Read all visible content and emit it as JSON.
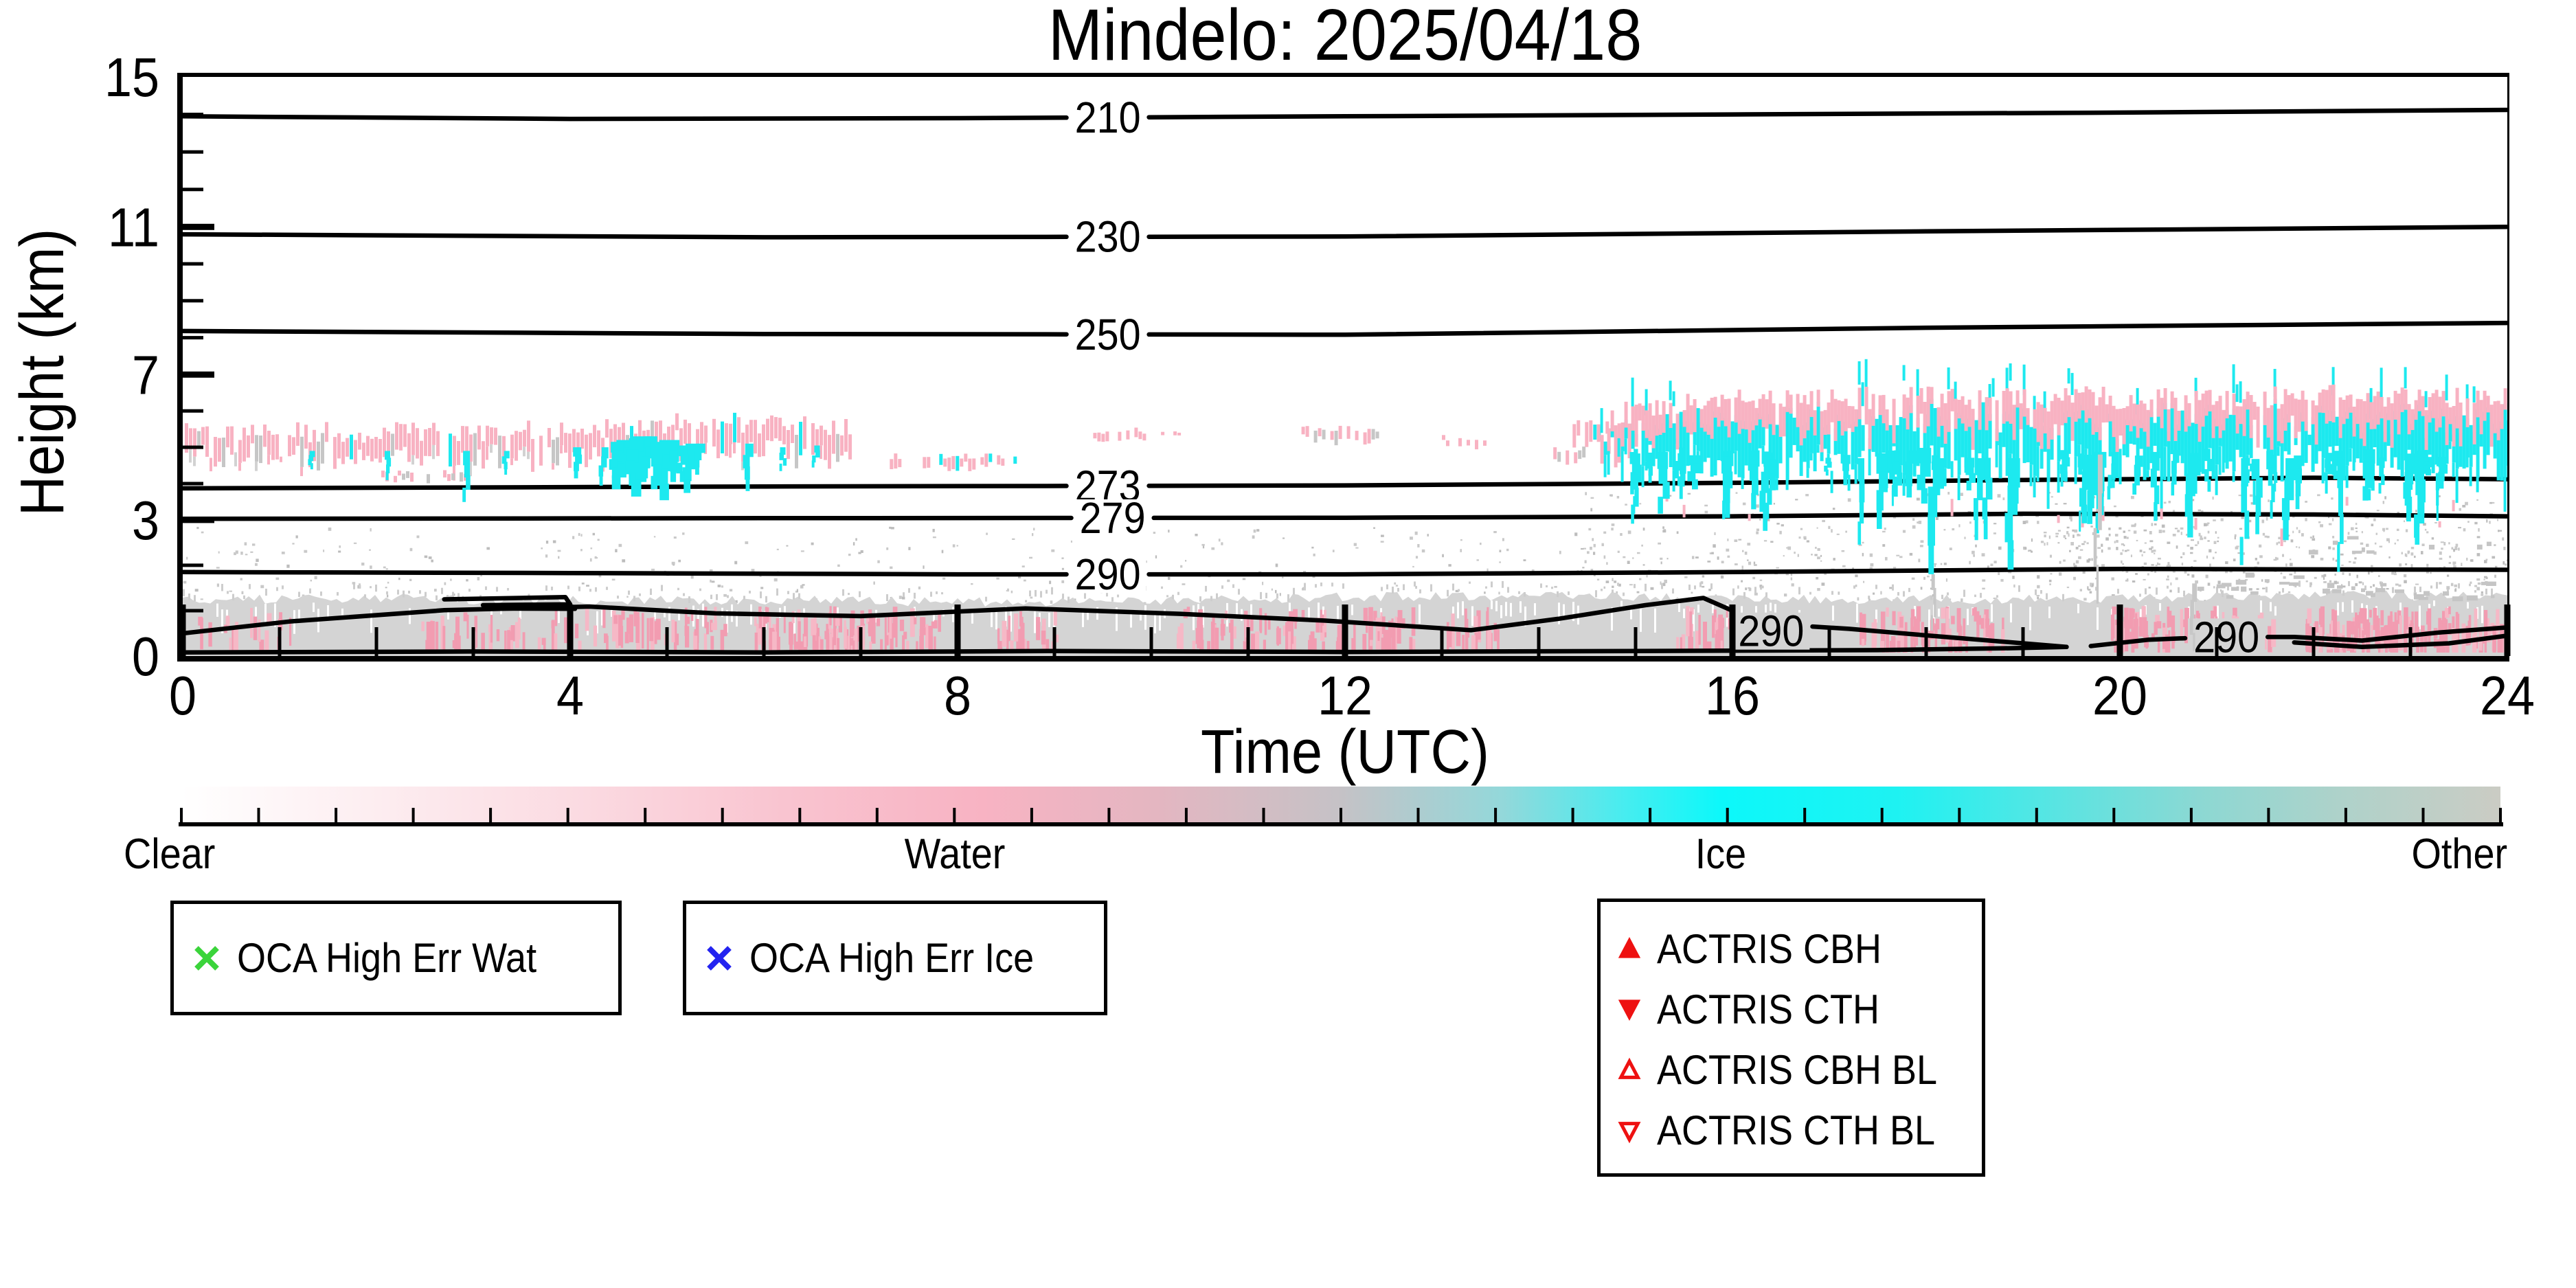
{
  "title": "Mindelo: 2025/04/18",
  "axes": {
    "ylabel": "Height (km)",
    "xlabel": "Time (UTC)"
  },
  "colorbar": {
    "labels": [
      {
        "text": "Clear"
      },
      {
        "text": "Water"
      },
      {
        "text": "Ice"
      },
      {
        "text": "Other"
      }
    ],
    "tick_count": 31,
    "stops": [
      [
        0.0,
        "#ffffff"
      ],
      [
        0.08,
        "#fdeef1"
      ],
      [
        0.17,
        "#fbdbe2"
      ],
      [
        0.26,
        "#f9c4d0"
      ],
      [
        0.345,
        "#f8b3c3"
      ],
      [
        0.42,
        "#e4b6c1"
      ],
      [
        0.5,
        "#c5c2c6"
      ],
      [
        0.57,
        "#93d8da"
      ],
      [
        0.62,
        "#4aecef"
      ],
      [
        0.664,
        "#0cf8fa"
      ],
      [
        0.74,
        "#1ef2f2"
      ],
      [
        0.8,
        "#52e6e4"
      ],
      [
        0.87,
        "#8cd8d3"
      ],
      [
        0.93,
        "#aed2ca"
      ],
      [
        1.0,
        "#cbccc4"
      ]
    ]
  },
  "legends": {
    "oca_wat": {
      "label": "OCA High Err Wat",
      "marker": "x",
      "color": "#3bd43b"
    },
    "oca_ice": {
      "label": "OCA High Err Ice",
      "marker": "x",
      "color": "#2323f0"
    },
    "actris": {
      "marker_color": "#ee1111",
      "items": [
        {
          "label": "ACTRIS CBH",
          "marker": "triangle-up-filled"
        },
        {
          "label": "ACTRIS CTH",
          "marker": "triangle-down-filled"
        },
        {
          "label": "ACTRIS CBH BL",
          "marker": "triangle-up-open"
        },
        {
          "label": "ACTRIS CTH BL",
          "marker": "triangle-down-open"
        }
      ]
    }
  },
  "chart_data": {
    "type": "heatmap",
    "title": "Mindelo: 2025/04/18",
    "xlabel": "Time (UTC)",
    "ylabel": "Height (km)",
    "x_range": [
      0,
      24
    ],
    "x_major_ticks": [
      0,
      4,
      8,
      12,
      16,
      20,
      24
    ],
    "x_minor_step": 1,
    "y_range": [
      0,
      15
    ],
    "y_major_ticks": [
      0,
      3,
      7,
      11,
      15
    ],
    "y_minor_step": 1,
    "height_scale_anchors": [
      [
        0,
        0.0
      ],
      [
        3,
        0.235
      ],
      [
        7,
        0.486
      ],
      [
        11,
        0.741
      ],
      [
        15,
        1.0
      ]
    ],
    "category_colors": {
      "clear": "#ffffff",
      "water": "#f8b2c2",
      "ice": "#1de9ef",
      "other_gray": "#d4d4d4",
      "water_bl_streak": "#f29cb1",
      "drizzle_gray": "#c9c9c9"
    },
    "temperature_contours": [
      {
        "level": 210,
        "pts": [
          [
            0,
            13.95
          ],
          [
            4,
            13.88
          ],
          [
            8,
            13.9
          ],
          [
            12,
            13.95
          ],
          [
            16,
            14.0
          ],
          [
            20,
            14.05
          ],
          [
            24,
            14.12
          ]
        ],
        "label": {
          "h": 9.55
        }
      },
      {
        "level": 230,
        "pts": [
          [
            0,
            10.8
          ],
          [
            6,
            10.72
          ],
          [
            12,
            10.74
          ],
          [
            18,
            10.88
          ],
          [
            24,
            11.0
          ]
        ],
        "label": {
          "h": 9.55
        }
      },
      {
        "level": 250,
        "pts": [
          [
            0,
            8.18
          ],
          [
            6,
            8.1
          ],
          [
            12,
            8.08
          ],
          [
            18,
            8.27
          ],
          [
            24,
            8.4
          ]
        ],
        "label": {
          "h": 9.55
        }
      },
      {
        "level": 273,
        "pts": [
          [
            0,
            3.87
          ],
          [
            6,
            3.92
          ],
          [
            12,
            3.95
          ],
          [
            16,
            4.02
          ],
          [
            19,
            4.1
          ],
          [
            22,
            4.16
          ],
          [
            24,
            4.12
          ]
        ],
        "label": {
          "h": 9.55
        }
      },
      {
        "level": 279,
        "pts": [
          [
            0,
            3.03
          ],
          [
            6,
            3.05
          ],
          [
            12,
            3.06
          ],
          [
            16,
            3.1
          ],
          [
            19,
            3.17
          ],
          [
            22,
            3.15
          ],
          [
            24,
            3.1
          ]
        ],
        "label": {
          "h": 9.6
        }
      },
      {
        "level": 290,
        "pts": [
          [
            0,
            1.85
          ],
          [
            4,
            1.83
          ],
          [
            8,
            1.8
          ],
          [
            12,
            1.8
          ],
          [
            16,
            1.85
          ],
          [
            20,
            1.92
          ],
          [
            24,
            1.9
          ]
        ],
        "label": {
          "h": 9.55
        }
      },
      {
        "level": 290,
        "pts": [
          [
            0,
            0.5
          ],
          [
            1.1,
            0.76
          ],
          [
            2.7,
            1.01
          ],
          [
            4.2,
            1.09
          ],
          [
            5.5,
            0.94
          ],
          [
            7,
            0.88
          ],
          [
            8.7,
            1.05
          ],
          [
            10.3,
            0.93
          ],
          [
            11.8,
            0.78
          ],
          [
            13.3,
            0.57
          ],
          [
            14.2,
            0.82
          ],
          [
            15.1,
            1.12
          ],
          [
            15.7,
            1.28
          ],
          [
            16.0,
            1.0
          ],
          [
            16.3,
            0.72
          ],
          [
            17.2,
            0.6
          ],
          [
            18.2,
            0.42
          ],
          [
            19.0,
            0.28
          ],
          [
            19.45,
            0.2
          ]
        ],
        "label": {
          "h": 16.4,
          "km": 0.55,
          "on_bl": true
        }
      },
      {
        "level": 290,
        "pts": [
          [
            0,
            0.08
          ],
          [
            3,
            0.1
          ],
          [
            6,
            0.08
          ],
          [
            9,
            0.11
          ],
          [
            12,
            0.09
          ],
          [
            15,
            0.11
          ],
          [
            17.5,
            0.13
          ],
          [
            18.8,
            0.17
          ],
          [
            19.45,
            0.2
          ]
        ],
        "label": null
      },
      {
        "level": 290,
        "pts": [
          [
            19.7,
            0.22
          ],
          [
            20.3,
            0.36
          ],
          [
            21.0,
            0.42
          ],
          [
            21.8,
            0.42
          ],
          [
            22.5,
            0.34
          ],
          [
            23.3,
            0.52
          ],
          [
            24,
            0.63
          ]
        ],
        "label": {
          "h": 21.1,
          "km": 0.42,
          "on_bl": true
        }
      },
      {
        "level": 290,
        "pts": [
          [
            21.8,
            0.3
          ],
          [
            22.5,
            0.2
          ],
          [
            23.4,
            0.28
          ],
          [
            24,
            0.45
          ]
        ],
        "label": null
      },
      {
        "level": 290,
        "pts": [
          [
            2.7,
            1.25
          ],
          [
            3.95,
            1.3
          ],
          [
            4.0,
            1.14
          ],
          [
            3.1,
            1.12
          ],
          [
            3.15,
            1.05
          ],
          [
            4.05,
            1.04
          ]
        ],
        "label": null
      }
    ],
    "clouds": {
      "left_band": {
        "h0": 0.0,
        "h1": 6.9,
        "top_km": [
          [
            0,
            5.45
          ],
          [
            2,
            5.4
          ],
          [
            3.5,
            5.45
          ],
          [
            4.6,
            5.55
          ],
          [
            5.3,
            5.75
          ],
          [
            5.9,
            5.65
          ],
          [
            6.9,
            5.5
          ]
        ],
        "thick_km": 0.55
      },
      "left_streaks": [
        {
          "h": 1.35,
          "top": 4.9,
          "bot": 4.45,
          "w": 8
        },
        {
          "h": 2.12,
          "top": 4.9,
          "bot": 4.15,
          "w": 8
        },
        {
          "h": 2.95,
          "top": 4.9,
          "bot": 3.55,
          "w": 10
        },
        {
          "h": 3.35,
          "top": 4.9,
          "bot": 4.3,
          "w": 8
        },
        {
          "h": 4.1,
          "top": 5.0,
          "bot": 4.2,
          "w": 12
        },
        {
          "h": 4.35,
          "top": 5.0,
          "bot": 4.0,
          "w": 10
        },
        {
          "h": 4.55,
          "top": 5.2,
          "bot": 3.9,
          "w": 26
        },
        {
          "h": 4.75,
          "top": 5.3,
          "bot": 3.7,
          "w": 30
        },
        {
          "h": 5.0,
          "top": 5.2,
          "bot": 3.6,
          "w": 28
        },
        {
          "h": 5.25,
          "top": 5.1,
          "bot": 3.8,
          "w": 20
        },
        {
          "h": 5.85,
          "top": 5.1,
          "bot": 3.85,
          "w": 12
        },
        {
          "h": 6.2,
          "top": 5.0,
          "bot": 4.4,
          "w": 8
        },
        {
          "h": 6.55,
          "top": 5.05,
          "bot": 4.5,
          "w": 8
        }
      ],
      "patches": [
        {
          "h0": 2.05,
          "h1": 3.0,
          "km0": 4.05,
          "km1": 4.3,
          "c": "mix"
        },
        {
          "h0": 7.3,
          "h1": 8.6,
          "km0": 4.35,
          "km1": 4.75,
          "c": "pinkcyan"
        },
        {
          "h0": 9.4,
          "h1": 9.95,
          "km0": 5.15,
          "km1": 5.45,
          "c": "pink"
        },
        {
          "h0": 10.1,
          "h1": 10.3,
          "km0": 5.2,
          "km1": 5.35,
          "c": "pink"
        },
        {
          "h0": 11.55,
          "h1": 12.4,
          "km0": 5.1,
          "km1": 5.5,
          "c": "mix"
        },
        {
          "h0": 13.0,
          "h1": 13.45,
          "km0": 5.0,
          "km1": 5.25,
          "c": "pink"
        },
        {
          "h0": 14.15,
          "h1": 14.45,
          "km0": 4.55,
          "km1": 4.95,
          "c": "mix"
        },
        {
          "h0": 14.35,
          "h1": 14.75,
          "km0": 4.95,
          "km1": 5.65,
          "c": "pinkcyan"
        }
      ],
      "right_cloud": {
        "h0": 14.6,
        "h1": 24,
        "top_km": [
          [
            14.6,
            5.6
          ],
          [
            15.0,
            6.05
          ],
          [
            15.5,
            6.25
          ],
          [
            16.0,
            6.35
          ],
          [
            17,
            6.3
          ],
          [
            18,
            6.38
          ],
          [
            19,
            6.3
          ],
          [
            20,
            6.38
          ],
          [
            21,
            6.3
          ],
          [
            22,
            6.42
          ],
          [
            23,
            6.35
          ],
          [
            24,
            6.42
          ]
        ],
        "pink_km": 0.45,
        "body_bot_km": [
          [
            14.6,
            5.2
          ],
          [
            15.0,
            4.9
          ],
          [
            16,
            4.6
          ],
          [
            17,
            4.55
          ],
          [
            18,
            4.6
          ],
          [
            19,
            4.55
          ],
          [
            20,
            4.6
          ],
          [
            21,
            4.55
          ],
          [
            22,
            4.6
          ],
          [
            23,
            4.65
          ],
          [
            24,
            4.6
          ]
        ],
        "streaks": {
          "count": 55,
          "bot_min": 2.6,
          "bot_max": 4.3
        },
        "deep_streaks": [
          {
            "h": 17.35,
            "bot": 2.5
          },
          {
            "h": 18.1,
            "bot": 1.85
          },
          {
            "h": 18.55,
            "bot": 2.6
          },
          {
            "h": 18.9,
            "bot": 1.95
          },
          {
            "h": 19.8,
            "bot": 2.75
          },
          {
            "h": 21.3,
            "bot": 2.05
          },
          {
            "h": 21.75,
            "bot": 2.6
          },
          {
            "h": 22.3,
            "bot": 1.9
          },
          {
            "h": 23.1,
            "bot": 2.5
          }
        ]
      },
      "gray_streaks": [
        {
          "h": 19.78,
          "top": 4.8,
          "bot": 1.2,
          "w": 7
        },
        {
          "h": 20.75,
          "top": 1.6,
          "bot": 0.15,
          "w": 7
        },
        {
          "h": 18.08,
          "top": 1.8,
          "bot": 0.6,
          "w": 5
        }
      ],
      "gray_patches": [
        {
          "h0": 21.0,
          "h1": 24.0,
          "km0": 1.3,
          "km1": 1.7,
          "d": 0.45
        },
        {
          "h0": 20.8,
          "h1": 22.3,
          "km0": 1.45,
          "km1": 1.85,
          "d": 0.3
        },
        {
          "h0": 21.9,
          "h1": 23.95,
          "km0": 2.3,
          "km1": 2.7,
          "d": 0.3
        }
      ],
      "speckle_regions": [
        {
          "h0": 0,
          "h1": 24,
          "km0": 0.95,
          "km1": 2.85,
          "n": 520
        },
        {
          "h0": 14.3,
          "h1": 24,
          "km0": 1.5,
          "km1": 3.8,
          "n": 380
        },
        {
          "h0": 19,
          "h1": 24,
          "km0": 1.3,
          "km1": 3.2,
          "n": 260
        }
      ]
    },
    "boundary_layer": {
      "top_km": [
        [
          0,
          1.24
        ],
        [
          2,
          1.27
        ],
        [
          4,
          1.22
        ],
        [
          6,
          1.24
        ],
        [
          8,
          1.19
        ],
        [
          10,
          1.22
        ],
        [
          12,
          1.3
        ],
        [
          14,
          1.33
        ],
        [
          16,
          1.27
        ],
        [
          18,
          1.24
        ],
        [
          20,
          1.28
        ],
        [
          22,
          1.36
        ],
        [
          24,
          1.3
        ]
      ],
      "pink_clusters": [
        {
          "h0": 0.15,
          "h1": 1.1,
          "n": 20
        },
        {
          "h0": 2.4,
          "h1": 5.6,
          "n": 90
        },
        {
          "h0": 5.9,
          "h1": 7.8,
          "n": 120
        },
        {
          "h0": 8.4,
          "h1": 9.0,
          "n": 24
        },
        {
          "h0": 10.2,
          "h1": 12.7,
          "n": 100
        },
        {
          "h0": 13.0,
          "h1": 13.6,
          "n": 20
        },
        {
          "h0": 15.4,
          "h1": 16.0,
          "n": 30
        },
        {
          "h0": 17.3,
          "h1": 18.8,
          "n": 70
        },
        {
          "h0": 19.9,
          "h1": 21.6,
          "n": 90
        },
        {
          "h0": 21.9,
          "h1": 24.0,
          "n": 150
        }
      ]
    }
  }
}
